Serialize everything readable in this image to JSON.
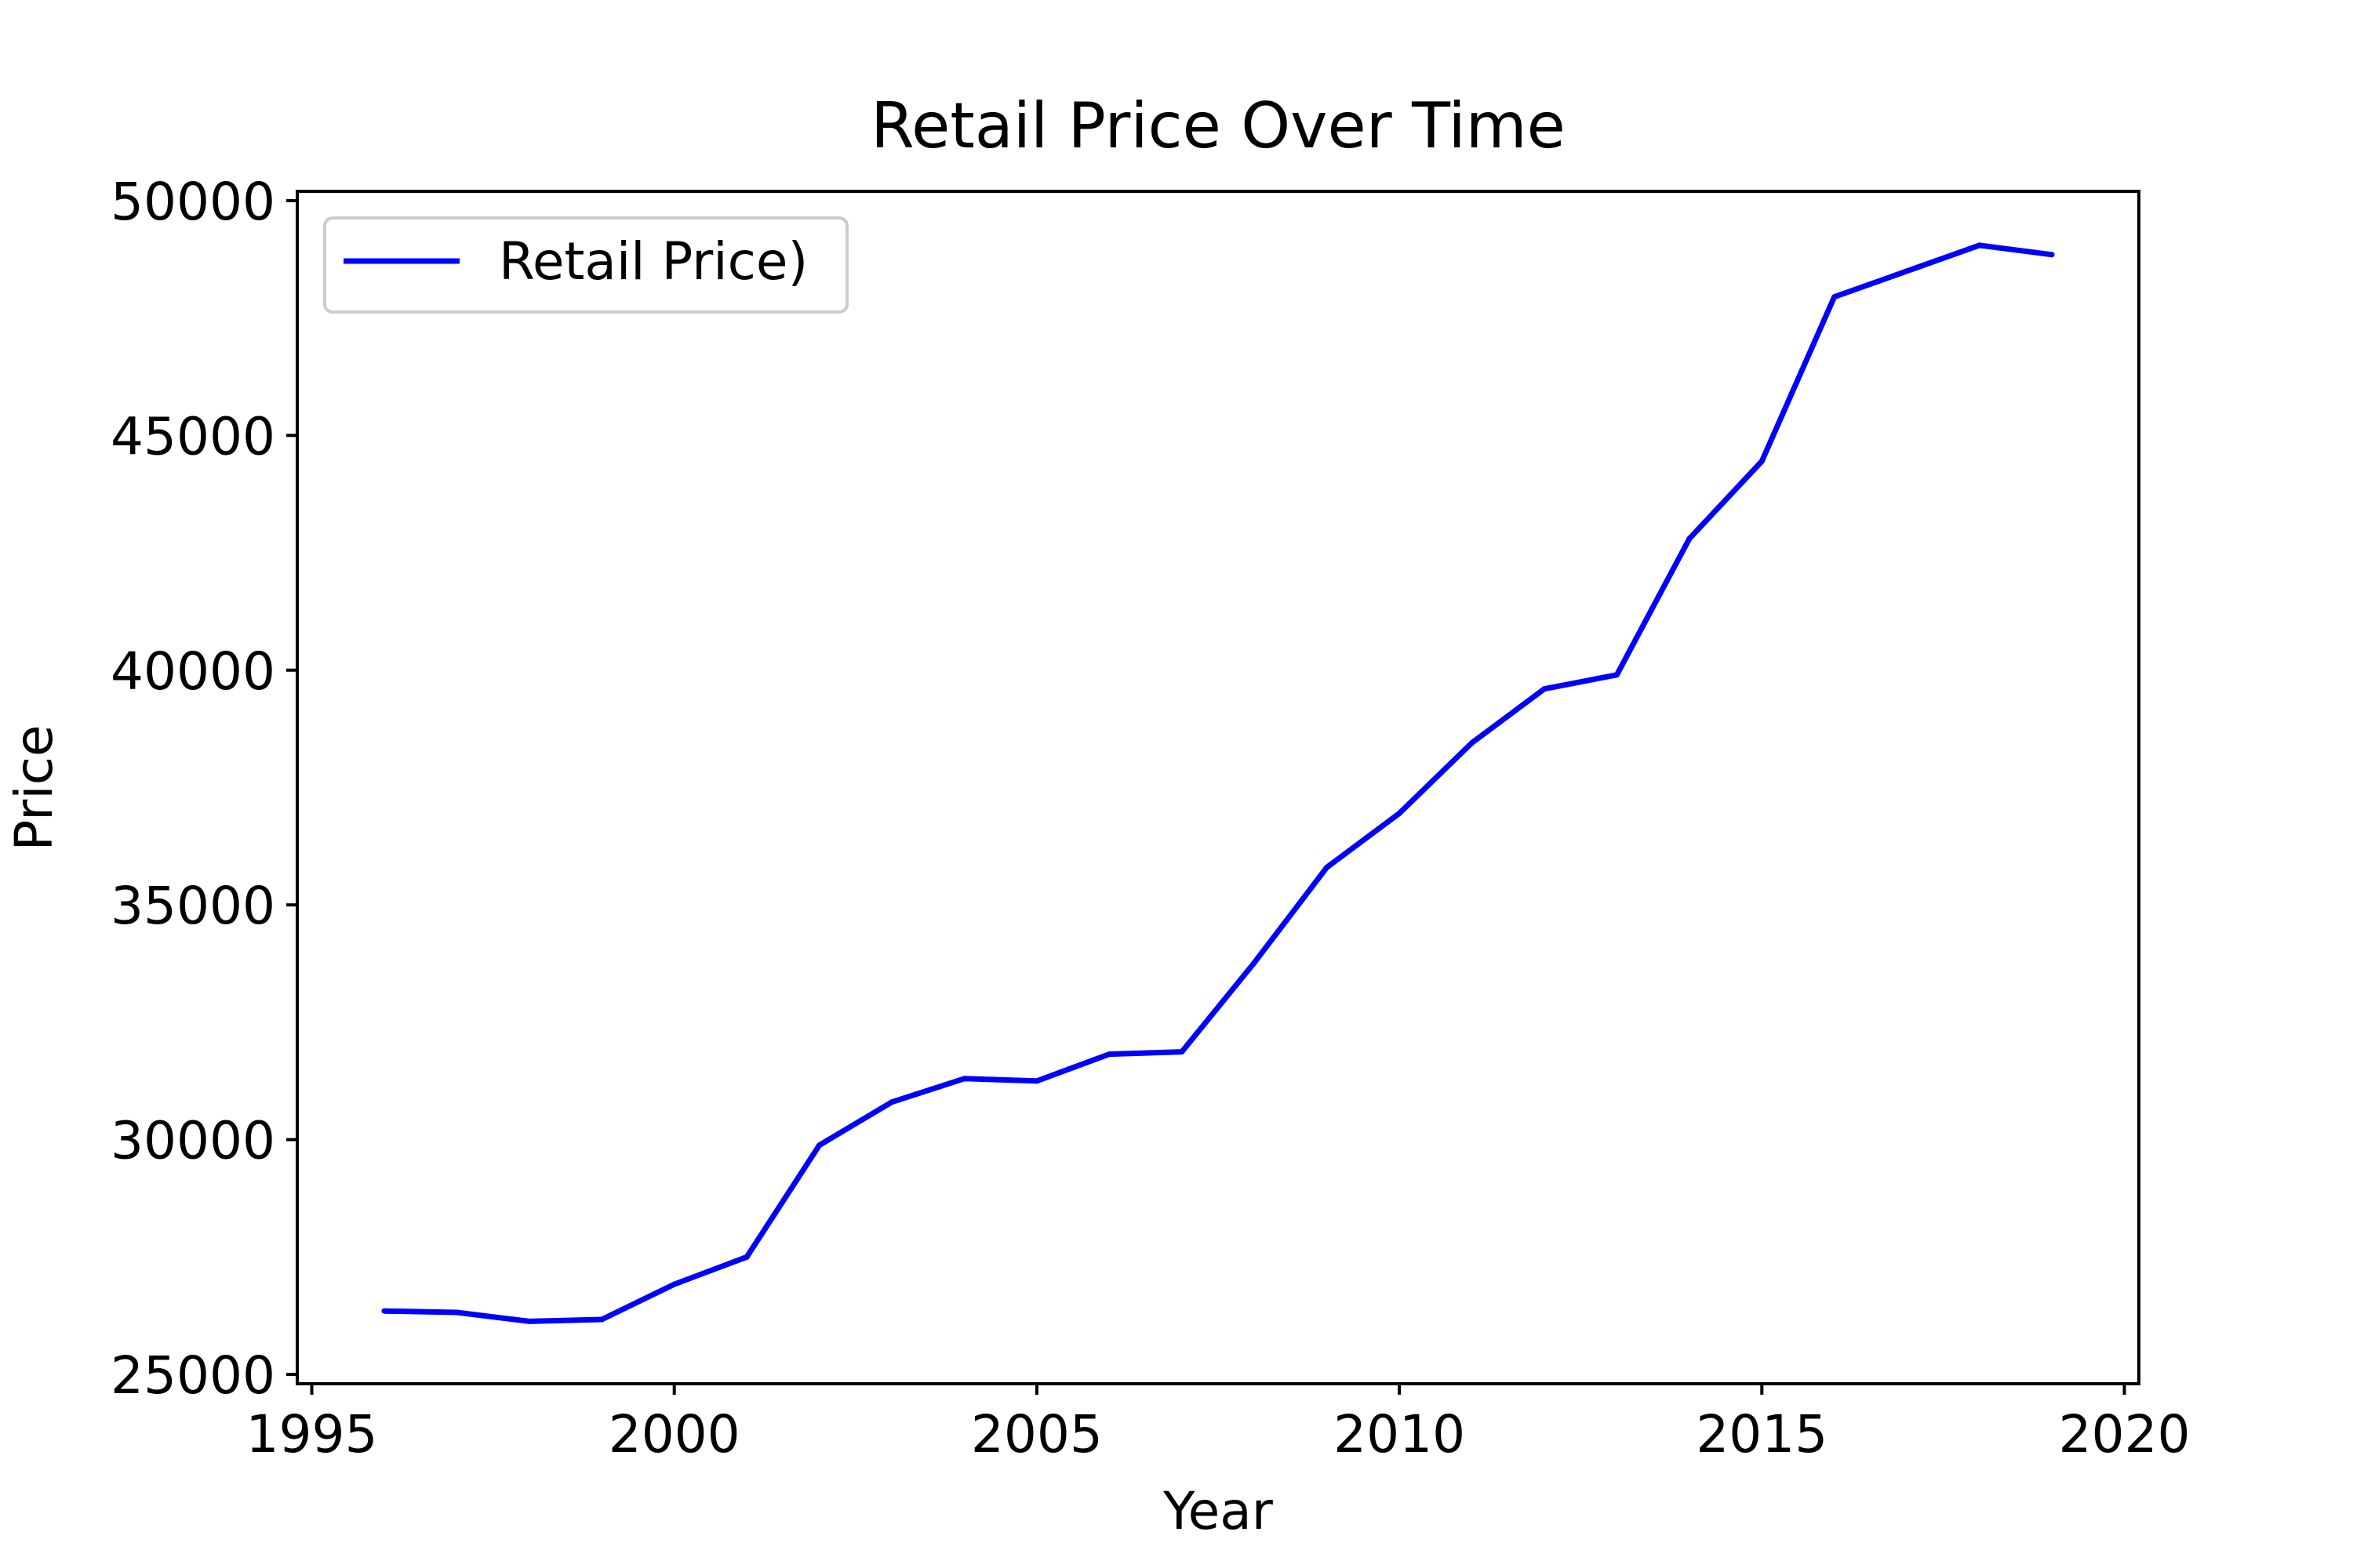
{
  "chart_data": {
    "type": "line",
    "title": "Retail Price Over Time",
    "xlabel": "Year",
    "ylabel": "Price",
    "xlim": [
      1994.8,
      2020.2
    ],
    "ylim": [
      24800,
      50200
    ],
    "x_ticks": [
      1995,
      2000,
      2005,
      2010,
      2015,
      2020
    ],
    "x_tick_labels": [
      "1995",
      "2000",
      "2005",
      "2010",
      "2015",
      "2020"
    ],
    "y_ticks": [
      25000,
      30000,
      35000,
      40000,
      45000,
      50000
    ],
    "y_tick_labels": [
      "25000",
      "30000",
      "35000",
      "40000",
      "45000",
      "50000"
    ],
    "grid": false,
    "legend_position": "upper-left",
    "series": [
      {
        "name": "Retail Price)",
        "color": "#0000ff",
        "x": [
          1996,
          1997,
          1998,
          1999,
          2000,
          2001,
          2002,
          2003,
          2004,
          2005,
          2006,
          2007,
          2008,
          2009,
          2010,
          2011,
          2012,
          2013,
          2014,
          2015,
          2016,
          2017,
          2018,
          2019
        ],
        "y": [
          26350,
          26320,
          26130,
          26170,
          26920,
          27500,
          29880,
          30800,
          31300,
          31250,
          31820,
          31870,
          33770,
          35800,
          36950,
          38450,
          39600,
          39900,
          42800,
          44450,
          47950,
          48500,
          49050,
          48850
        ]
      }
    ]
  }
}
